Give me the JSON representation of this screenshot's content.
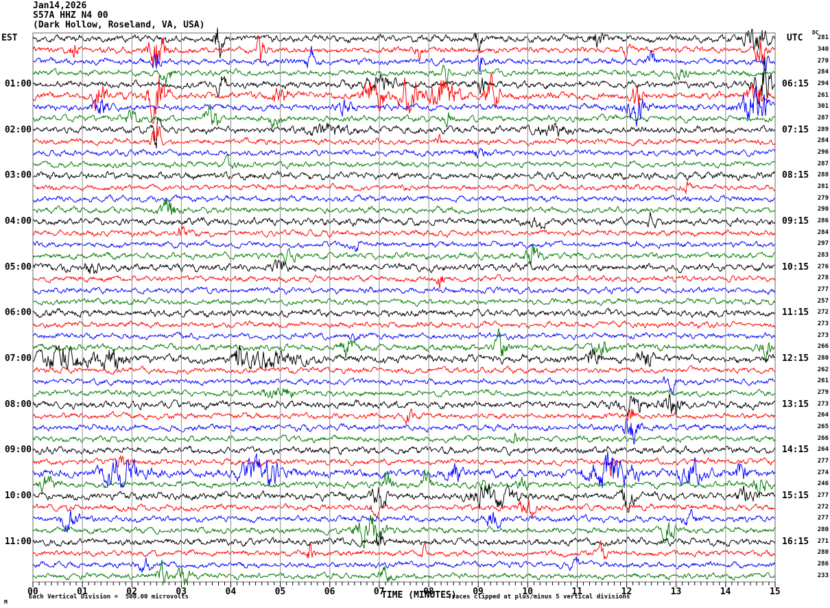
{
  "header": {
    "date": "Jan14,2026",
    "station": "S57A HHZ N4 00",
    "location": "(Dark Hollow, Roseland, VA, USA)",
    "left_tz": "EST",
    "right_tz": "UTC",
    "dc_label": "DC"
  },
  "footer": {
    "xlabel": "TIME (MINUTES)",
    "scale_note": "Each Vertical Division =  500.00 microvolts",
    "clip_note": "Traces clipped at plus/minus 5 vertical divisions",
    "corner_mark": "M"
  },
  "colors": {
    "background": "#ffffff",
    "grid": "#8c8c8c",
    "border": "#666666",
    "axis": "#000000",
    "trace_cycle": [
      "#000000",
      "#ff0000",
      "#0000ff",
      "#007a00"
    ]
  },
  "chart_data": {
    "type": "line",
    "title": "S57A HHZ N4 00 helicorder, Jan14,2026, Dark Hollow, Roseland, VA, USA",
    "xlabel": "TIME (MINUTES)",
    "x_range_minutes": [
      0,
      15
    ],
    "x_ticks": [
      "00",
      "01",
      "02",
      "03",
      "04",
      "05",
      "06",
      "07",
      "08",
      "09",
      "10",
      "11",
      "12",
      "13",
      "14",
      "15"
    ],
    "minor_ticks_per_minute": 8,
    "rows_per_hour": 4,
    "row_minutes": 15,
    "rows": [
      {
        "est": "",
        "utc": "",
        "dc": 281,
        "c": 0,
        "amp": 3.8,
        "ev": [
          [
            3.75,
            6,
            0.06
          ],
          [
            9.0,
            3,
            0.05
          ],
          [
            11.4,
            2.5,
            0.1
          ],
          [
            14.6,
            5,
            0.15
          ]
        ]
      },
      {
        "est": "",
        "utc": "",
        "dc": 340,
        "c": 1,
        "amp": 3.4,
        "ev": [
          [
            0.85,
            5,
            0.05
          ],
          [
            2.5,
            9,
            0.1
          ],
          [
            4.6,
            6,
            0.06
          ],
          [
            7.8,
            3,
            0.05
          ],
          [
            12.0,
            3,
            0.05
          ],
          [
            14.7,
            6,
            0.08
          ]
        ]
      },
      {
        "est": "",
        "utc": "",
        "dc": 270,
        "c": 2,
        "amp": 3.4,
        "ev": [
          [
            2.5,
            4,
            0.04
          ],
          [
            5.6,
            5,
            0.05
          ],
          [
            9.05,
            6,
            0.05
          ],
          [
            12.5,
            4,
            0.05
          ],
          [
            14.8,
            4,
            0.05
          ]
        ]
      },
      {
        "est": "",
        "utc": "",
        "dc": 284,
        "c": 3,
        "amp": 3.3,
        "ev": [
          [
            2.7,
            4,
            0.08
          ],
          [
            8.35,
            4,
            0.05
          ],
          [
            13.1,
            2.5,
            0.08
          ]
        ]
      },
      {
        "est": "01:00",
        "utc": "06:15",
        "dc": 294,
        "c": 0,
        "amp": 4.0,
        "ev": [
          [
            3.8,
            4,
            0.06
          ],
          [
            7.0,
            2,
            0.2
          ],
          [
            9.1,
            2.5,
            0.08
          ],
          [
            14.75,
            8,
            0.12
          ]
        ]
      },
      {
        "est": "",
        "utc": "",
        "dc": 261,
        "c": 1,
        "amp": 4.0,
        "ev": [
          [
            1.35,
            5,
            0.08
          ],
          [
            2.5,
            8,
            0.12
          ],
          [
            5.0,
            3,
            0.1
          ],
          [
            6.9,
            5,
            0.15
          ],
          [
            7.6,
            6,
            0.12
          ],
          [
            8.3,
            5,
            0.2
          ],
          [
            9.3,
            5,
            0.1
          ],
          [
            12.2,
            4,
            0.08
          ],
          [
            14.6,
            5,
            0.1
          ]
        ]
      },
      {
        "est": "",
        "utc": "",
        "dc": 301,
        "c": 2,
        "amp": 3.6,
        "ev": [
          [
            1.35,
            4,
            0.1
          ],
          [
            6.3,
            2.5,
            0.1
          ],
          [
            12.2,
            5,
            0.15
          ],
          [
            14.6,
            6,
            0.2
          ]
        ]
      },
      {
        "est": "",
        "utc": "",
        "dc": 287,
        "c": 3,
        "amp": 3.4,
        "ev": [
          [
            2.0,
            2.5,
            0.1
          ],
          [
            3.6,
            4,
            0.1
          ],
          [
            4.9,
            3,
            0.08
          ],
          [
            8.4,
            3,
            0.06
          ]
        ]
      },
      {
        "est": "02:00",
        "utc": "07:15",
        "dc": 289,
        "c": 0,
        "amp": 3.9,
        "ev": [
          [
            2.5,
            7,
            0.05
          ],
          [
            6.0,
            2,
            0.3
          ],
          [
            10.5,
            2,
            0.2
          ]
        ]
      },
      {
        "est": "",
        "utc": "",
        "dc": 284,
        "c": 1,
        "amp": 3.2,
        "ev": [
          [
            2.5,
            8,
            0.06
          ],
          [
            8.2,
            2.5,
            0.05
          ]
        ]
      },
      {
        "est": "",
        "utc": "",
        "dc": 296,
        "c": 2,
        "amp": 3.2,
        "ev": [
          [
            9.0,
            2,
            0.1
          ]
        ]
      },
      {
        "est": "",
        "utc": "",
        "dc": 287,
        "c": 3,
        "amp": 3.2,
        "ev": [
          [
            4.0,
            2,
            0.1
          ]
        ]
      },
      {
        "est": "03:00",
        "utc": "08:15",
        "dc": 288,
        "c": 0,
        "amp": 4.0,
        "ev": []
      },
      {
        "est": "",
        "utc": "",
        "dc": 281,
        "c": 1,
        "amp": 3.2,
        "ev": [
          [
            13.2,
            2.5,
            0.05
          ]
        ]
      },
      {
        "est": "",
        "utc": "",
        "dc": 279,
        "c": 2,
        "amp": 3.2,
        "ev": []
      },
      {
        "est": "",
        "utc": "",
        "dc": 290,
        "c": 3,
        "amp": 3.3,
        "ev": [
          [
            2.75,
            5,
            0.12
          ]
        ]
      },
      {
        "est": "04:00",
        "utc": "09:15",
        "dc": 286,
        "c": 0,
        "amp": 4.0,
        "ev": [
          [
            10.2,
            2,
            0.1
          ],
          [
            12.5,
            3,
            0.05
          ]
        ]
      },
      {
        "est": "",
        "utc": "",
        "dc": 284,
        "c": 1,
        "amp": 3.2,
        "ev": [
          [
            3.0,
            2,
            0.08
          ]
        ]
      },
      {
        "est": "",
        "utc": "",
        "dc": 297,
        "c": 2,
        "amp": 3.2,
        "ev": [
          [
            6.5,
            2.5,
            0.08
          ]
        ]
      },
      {
        "est": "",
        "utc": "",
        "dc": 283,
        "c": 3,
        "amp": 3.3,
        "ev": [
          [
            5.2,
            2.5,
            0.1
          ],
          [
            10.1,
            4,
            0.1
          ]
        ]
      },
      {
        "est": "05:00",
        "utc": "10:15",
        "dc": 276,
        "c": 0,
        "amp": 4.0,
        "ev": [
          [
            1.2,
            2.5,
            0.1
          ],
          [
            5.0,
            2,
            0.1
          ]
        ]
      },
      {
        "est": "",
        "utc": "",
        "dc": 278,
        "c": 1,
        "amp": 3.2,
        "ev": [
          [
            8.25,
            4,
            0.05
          ]
        ]
      },
      {
        "est": "",
        "utc": "",
        "dc": 277,
        "c": 2,
        "amp": 3.2,
        "ev": []
      },
      {
        "est": "",
        "utc": "",
        "dc": 257,
        "c": 3,
        "amp": 3.2,
        "ev": []
      },
      {
        "est": "06:00",
        "utc": "11:15",
        "dc": 272,
        "c": 0,
        "amp": 3.9,
        "ev": []
      },
      {
        "est": "",
        "utc": "",
        "dc": 273,
        "c": 1,
        "amp": 3.2,
        "ev": []
      },
      {
        "est": "",
        "utc": "",
        "dc": 273,
        "c": 2,
        "amp": 3.2,
        "ev": [
          [
            6.5,
            2,
            0.1
          ]
        ]
      },
      {
        "est": "",
        "utc": "",
        "dc": 266,
        "c": 3,
        "amp": 3.6,
        "ev": [
          [
            6.35,
            4,
            0.08
          ],
          [
            9.45,
            4,
            0.08
          ],
          [
            11.5,
            2.5,
            0.1
          ],
          [
            14.8,
            4,
            0.08
          ]
        ]
      },
      {
        "est": "07:00",
        "utc": "12:15",
        "dc": 280,
        "c": 0,
        "amp": 4.5,
        "ev": [
          [
            0.6,
            3,
            0.3
          ],
          [
            1.6,
            3,
            0.2
          ],
          [
            4.15,
            5,
            0.04
          ],
          [
            4.8,
            2.5,
            0.4
          ],
          [
            11.3,
            3,
            0.1
          ],
          [
            12.4,
            3,
            0.1
          ]
        ]
      },
      {
        "est": "",
        "utc": "",
        "dc": 262,
        "c": 1,
        "amp": 3.2,
        "ev": []
      },
      {
        "est": "",
        "utc": "",
        "dc": 261,
        "c": 2,
        "amp": 3.2,
        "ev": [
          [
            12.9,
            4,
            0.08
          ]
        ]
      },
      {
        "est": "",
        "utc": "",
        "dc": 279,
        "c": 3,
        "amp": 3.3,
        "ev": [
          [
            5.0,
            2,
            0.2
          ]
        ]
      },
      {
        "est": "08:00",
        "utc": "13:15",
        "dc": 273,
        "c": 0,
        "amp": 4.0,
        "ev": [
          [
            12.1,
            3,
            0.2
          ],
          [
            12.9,
            3,
            0.15
          ]
        ]
      },
      {
        "est": "",
        "utc": "",
        "dc": 264,
        "c": 1,
        "amp": 3.2,
        "ev": [
          [
            7.6,
            3,
            0.05
          ],
          [
            12.1,
            5,
            0.05
          ]
        ]
      },
      {
        "est": "",
        "utc": "",
        "dc": 265,
        "c": 2,
        "amp": 3.3,
        "ev": [
          [
            12.1,
            6,
            0.1
          ]
        ]
      },
      {
        "est": "",
        "utc": "",
        "dc": 266,
        "c": 3,
        "amp": 3.3,
        "ev": [
          [
            9.8,
            2.5,
            0.08
          ]
        ]
      },
      {
        "est": "09:00",
        "utc": "14:15",
        "dc": 264,
        "c": 0,
        "amp": 4.0,
        "ev": []
      },
      {
        "est": "",
        "utc": "",
        "dc": 277,
        "c": 1,
        "amp": 3.3,
        "ev": [
          [
            1.8,
            2.5,
            0.1
          ],
          [
            11.7,
            5,
            0.05
          ]
        ]
      },
      {
        "est": "",
        "utc": "",
        "dc": 274,
        "c": 2,
        "amp": 4.5,
        "ev": [
          [
            1.8,
            4,
            0.3
          ],
          [
            4.6,
            4,
            0.3
          ],
          [
            8.5,
            2.5,
            0.1
          ],
          [
            11.7,
            5,
            0.3
          ],
          [
            13.3,
            4,
            0.15
          ],
          [
            14.3,
            3,
            0.1
          ]
        ]
      },
      {
        "est": "",
        "utc": "",
        "dc": 246,
        "c": 3,
        "amp": 3.5,
        "ev": [
          [
            0.3,
            3,
            0.1
          ],
          [
            7.15,
            4,
            0.08
          ],
          [
            7.95,
            4,
            0.06
          ],
          [
            9.15,
            3,
            0.06
          ],
          [
            9.9,
            3,
            0.06
          ],
          [
            14.7,
            4,
            0.08
          ]
        ]
      },
      {
        "est": "10:00",
        "utc": "15:15",
        "dc": 277,
        "c": 0,
        "amp": 4.2,
        "ev": [
          [
            7.0,
            4,
            0.1
          ],
          [
            9.3,
            3.5,
            0.3
          ],
          [
            12.0,
            3.5,
            0.1
          ],
          [
            14.4,
            2.5,
            0.1
          ]
        ]
      },
      {
        "est": "",
        "utc": "",
        "dc": 272,
        "c": 1,
        "amp": 3.3,
        "ev": [
          [
            6.9,
            2.5,
            0.08
          ],
          [
            10.0,
            4,
            0.1
          ]
        ]
      },
      {
        "est": "",
        "utc": "",
        "dc": 277,
        "c": 2,
        "amp": 3.4,
        "ev": [
          [
            0.75,
            4,
            0.12
          ],
          [
            9.3,
            3,
            0.1
          ],
          [
            13.3,
            2.5,
            0.1
          ]
        ]
      },
      {
        "est": "",
        "utc": "",
        "dc": 280,
        "c": 3,
        "amp": 3.5,
        "ev": [
          [
            6.8,
            5,
            0.2
          ],
          [
            12.85,
            4,
            0.1
          ]
        ]
      },
      {
        "est": "11:00",
        "utc": "16:15",
        "dc": 271,
        "c": 0,
        "amp": 3.9,
        "ev": [
          [
            7.0,
            4,
            0.05
          ]
        ]
      },
      {
        "est": "",
        "utc": "",
        "dc": 280,
        "c": 1,
        "amp": 3.2,
        "ev": [
          [
            5.6,
            4,
            0.05
          ],
          [
            7.9,
            2.5,
            0.05
          ],
          [
            11.5,
            3,
            0.06
          ]
        ]
      },
      {
        "est": "",
        "utc": "",
        "dc": 286,
        "c": 2,
        "amp": 3.2,
        "ev": [
          [
            2.3,
            2,
            0.1
          ],
          [
            11.0,
            2,
            0.1
          ]
        ]
      },
      {
        "est": "",
        "utc": "",
        "dc": 233,
        "c": 3,
        "amp": 3.3,
        "ev": [
          [
            2.6,
            4,
            0.08
          ],
          [
            3.05,
            4,
            0.08
          ],
          [
            7.1,
            2.5,
            0.1
          ]
        ]
      }
    ]
  }
}
